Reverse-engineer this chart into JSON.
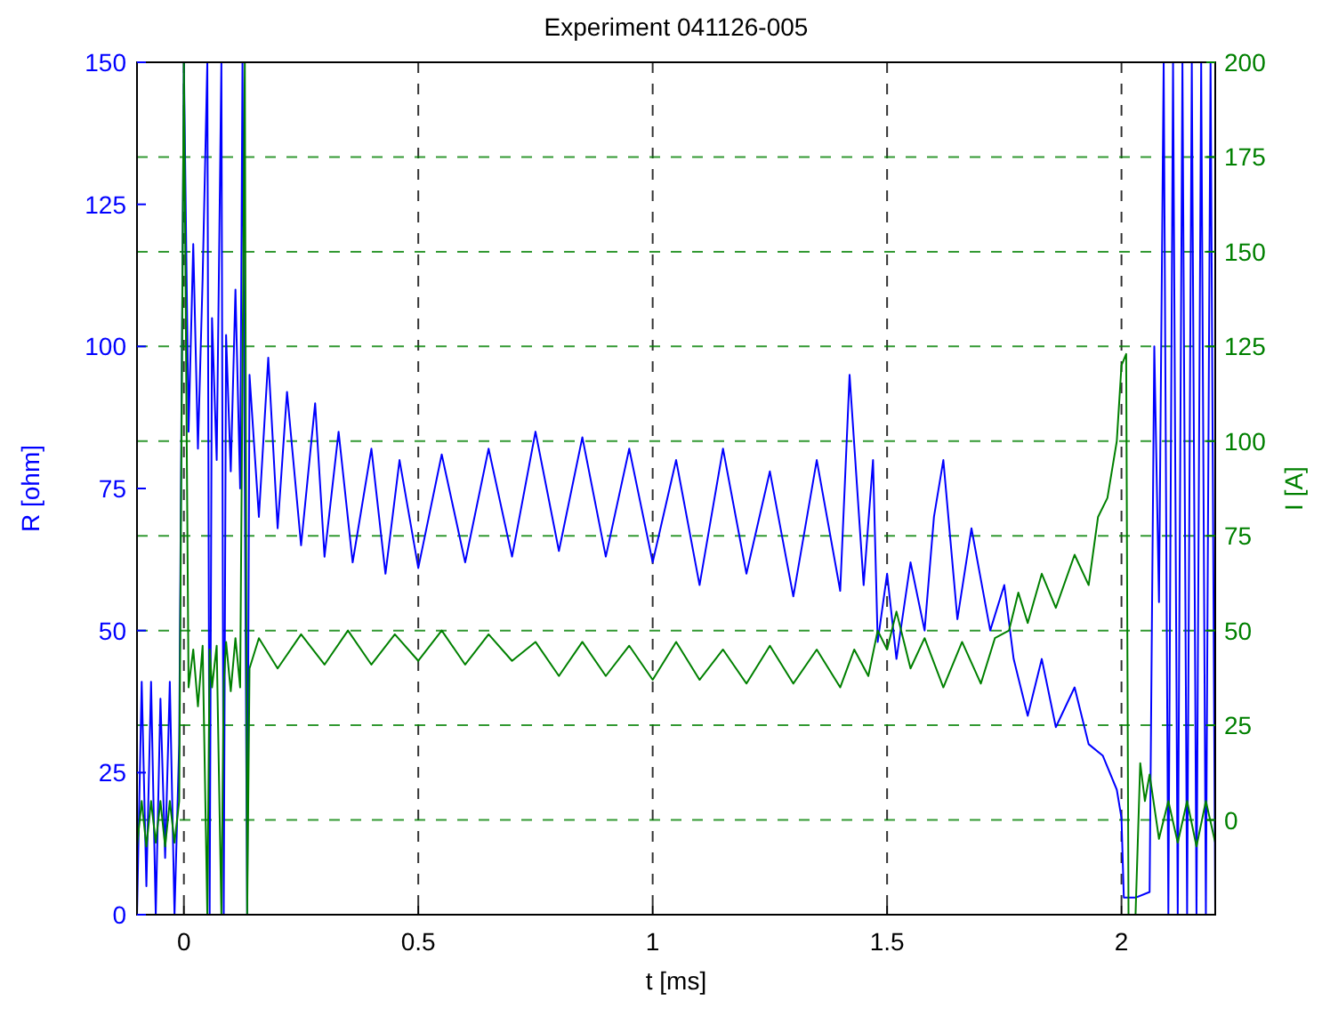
{
  "chart_data": {
    "type": "line",
    "title": "Experiment 041126-005",
    "xlabel": "t [ms]",
    "ylabel": "R [ohm]",
    "y2label": "I [A]",
    "xlim": [
      -0.1,
      2.2
    ],
    "xticks": [
      0,
      0.5,
      1,
      1.5,
      2
    ],
    "ylim": [
      0,
      150
    ],
    "yticks": [
      0,
      25,
      50,
      75,
      100,
      125,
      150
    ],
    "y2lim": [
      -25,
      200
    ],
    "y2ticks": [
      0,
      25,
      50,
      75,
      100,
      125,
      150,
      175,
      200
    ],
    "grid": true,
    "line_style": "solid",
    "series": [
      {
        "color": "#0000ff",
        "x": [
          -0.1,
          -0.09,
          -0.08,
          -0.07,
          -0.06,
          -0.05,
          -0.04,
          -0.03,
          -0.02,
          -0.01,
          0,
          0.01,
          0.02,
          0.03,
          0.04,
          0.05,
          0.055,
          0.06,
          0.07,
          0.08,
          0.085,
          0.09,
          0.1,
          0.11,
          0.12,
          0.125,
          0.135,
          0.14,
          0.16,
          0.18,
          0.2,
          0.22,
          0.25,
          0.28,
          0.3,
          0.33,
          0.36,
          0.4,
          0.43,
          0.46,
          0.5,
          0.55,
          0.6,
          0.65,
          0.7,
          0.75,
          0.8,
          0.85,
          0.9,
          0.95,
          1.0,
          1.05,
          1.1,
          1.15,
          1.2,
          1.25,
          1.3,
          1.35,
          1.4,
          1.42,
          1.45,
          1.47,
          1.48,
          1.5,
          1.52,
          1.55,
          1.58,
          1.6,
          1.62,
          1.65,
          1.68,
          1.72,
          1.75,
          1.77,
          1.8,
          1.83,
          1.86,
          1.9,
          1.93,
          1.96,
          1.99,
          2.0,
          2.005,
          2.03,
          2.06,
          2.07,
          2.08,
          2.09,
          2.1,
          2.11,
          2.12,
          2.13,
          2.14,
          2.15,
          2.16,
          2.17,
          2.18,
          2.19,
          2.2
        ],
        "values": [
          0,
          41,
          5,
          41,
          0,
          38,
          10,
          41,
          0,
          30,
          150,
          85,
          118,
          82,
          112,
          150,
          0,
          105,
          80,
          150,
          0,
          102,
          78,
          110,
          75,
          150,
          0,
          95,
          70,
          98,
          68,
          92,
          65,
          90,
          63,
          85,
          62,
          82,
          60,
          80,
          61,
          81,
          62,
          82,
          63,
          85,
          64,
          84,
          63,
          82,
          62,
          80,
          58,
          82,
          60,
          78,
          56,
          80,
          57,
          95,
          58,
          80,
          48,
          60,
          45,
          62,
          50,
          70,
          80,
          52,
          68,
          50,
          58,
          45,
          35,
          45,
          33,
          40,
          30,
          28,
          22,
          17,
          3,
          3,
          4,
          100,
          55,
          150,
          0,
          150,
          0,
          150,
          0,
          150,
          0,
          150,
          0,
          150,
          0
        ]
      },
      {
        "color": "#008000",
        "axis": "y2",
        "x": [
          -0.1,
          -0.09,
          -0.08,
          -0.07,
          -0.06,
          -0.05,
          -0.04,
          -0.03,
          -0.02,
          -0.01,
          0,
          0.01,
          0.02,
          0.03,
          0.04,
          0.05,
          0.055,
          0.06,
          0.07,
          0.08,
          0.085,
          0.09,
          0.1,
          0.11,
          0.12,
          0.13,
          0.135,
          0.14,
          0.16,
          0.2,
          0.25,
          0.3,
          0.35,
          0.4,
          0.45,
          0.5,
          0.55,
          0.6,
          0.65,
          0.7,
          0.75,
          0.8,
          0.85,
          0.9,
          0.95,
          1.0,
          1.05,
          1.1,
          1.15,
          1.2,
          1.25,
          1.3,
          1.35,
          1.4,
          1.43,
          1.46,
          1.48,
          1.5,
          1.52,
          1.55,
          1.58,
          1.62,
          1.66,
          1.7,
          1.73,
          1.76,
          1.78,
          1.8,
          1.83,
          1.86,
          1.9,
          1.93,
          1.95,
          1.97,
          1.99,
          2.0,
          2.01,
          2.015,
          2.03,
          2.04,
          2.05,
          2.06,
          2.08,
          2.1,
          2.12,
          2.14,
          2.16,
          2.18,
          2.2
        ],
        "values": [
          -7,
          5,
          -7,
          5,
          -6,
          5,
          -7,
          5,
          -6,
          5,
          200,
          35,
          45,
          30,
          46,
          -25,
          45,
          35,
          46,
          -25,
          36,
          47,
          34,
          48,
          35,
          200,
          -25,
          40,
          48,
          40,
          49,
          41,
          50,
          41,
          49,
          42,
          50,
          41,
          49,
          42,
          47,
          38,
          47,
          38,
          46,
          37,
          47,
          37,
          45,
          36,
          46,
          36,
          45,
          35,
          45,
          38,
          50,
          45,
          55,
          40,
          48,
          35,
          47,
          36,
          48,
          50,
          60,
          52,
          65,
          56,
          70,
          62,
          80,
          85,
          100,
          120,
          123,
          -25,
          -25,
          15,
          5,
          12,
          -5,
          5,
          -6,
          5,
          -7,
          5,
          -6
        ]
      }
    ]
  }
}
